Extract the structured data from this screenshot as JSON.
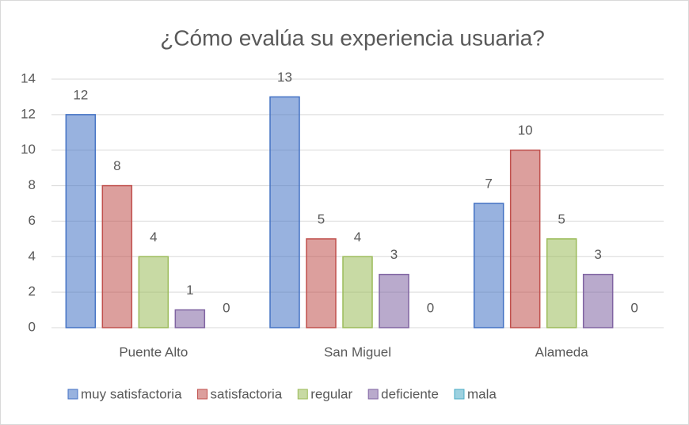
{
  "chart_data": {
    "type": "bar",
    "title": "¿Cómo evalúa su experiencia usuaria?",
    "categories": [
      "Puente Alto",
      "San Miguel",
      "Alameda"
    ],
    "series": [
      {
        "name": "muy satisfactoria",
        "color": "#4472c4",
        "values": [
          12,
          13,
          7
        ]
      },
      {
        "name": "satisfactoria",
        "color": "#c0504d",
        "values": [
          8,
          5,
          10
        ]
      },
      {
        "name": "regular",
        "color": "#9bbb59",
        "values": [
          4,
          4,
          5
        ]
      },
      {
        "name": "deficiente",
        "color": "#8064a2",
        "values": [
          1,
          3,
          3
        ]
      },
      {
        "name": "mala",
        "color": "#4bacc6",
        "values": [
          0,
          0,
          0
        ]
      }
    ],
    "ylim": [
      0,
      14
    ],
    "yticks": [
      0,
      2,
      4,
      6,
      8,
      10,
      12,
      14
    ],
    "grid": true,
    "legend": "bottom"
  }
}
